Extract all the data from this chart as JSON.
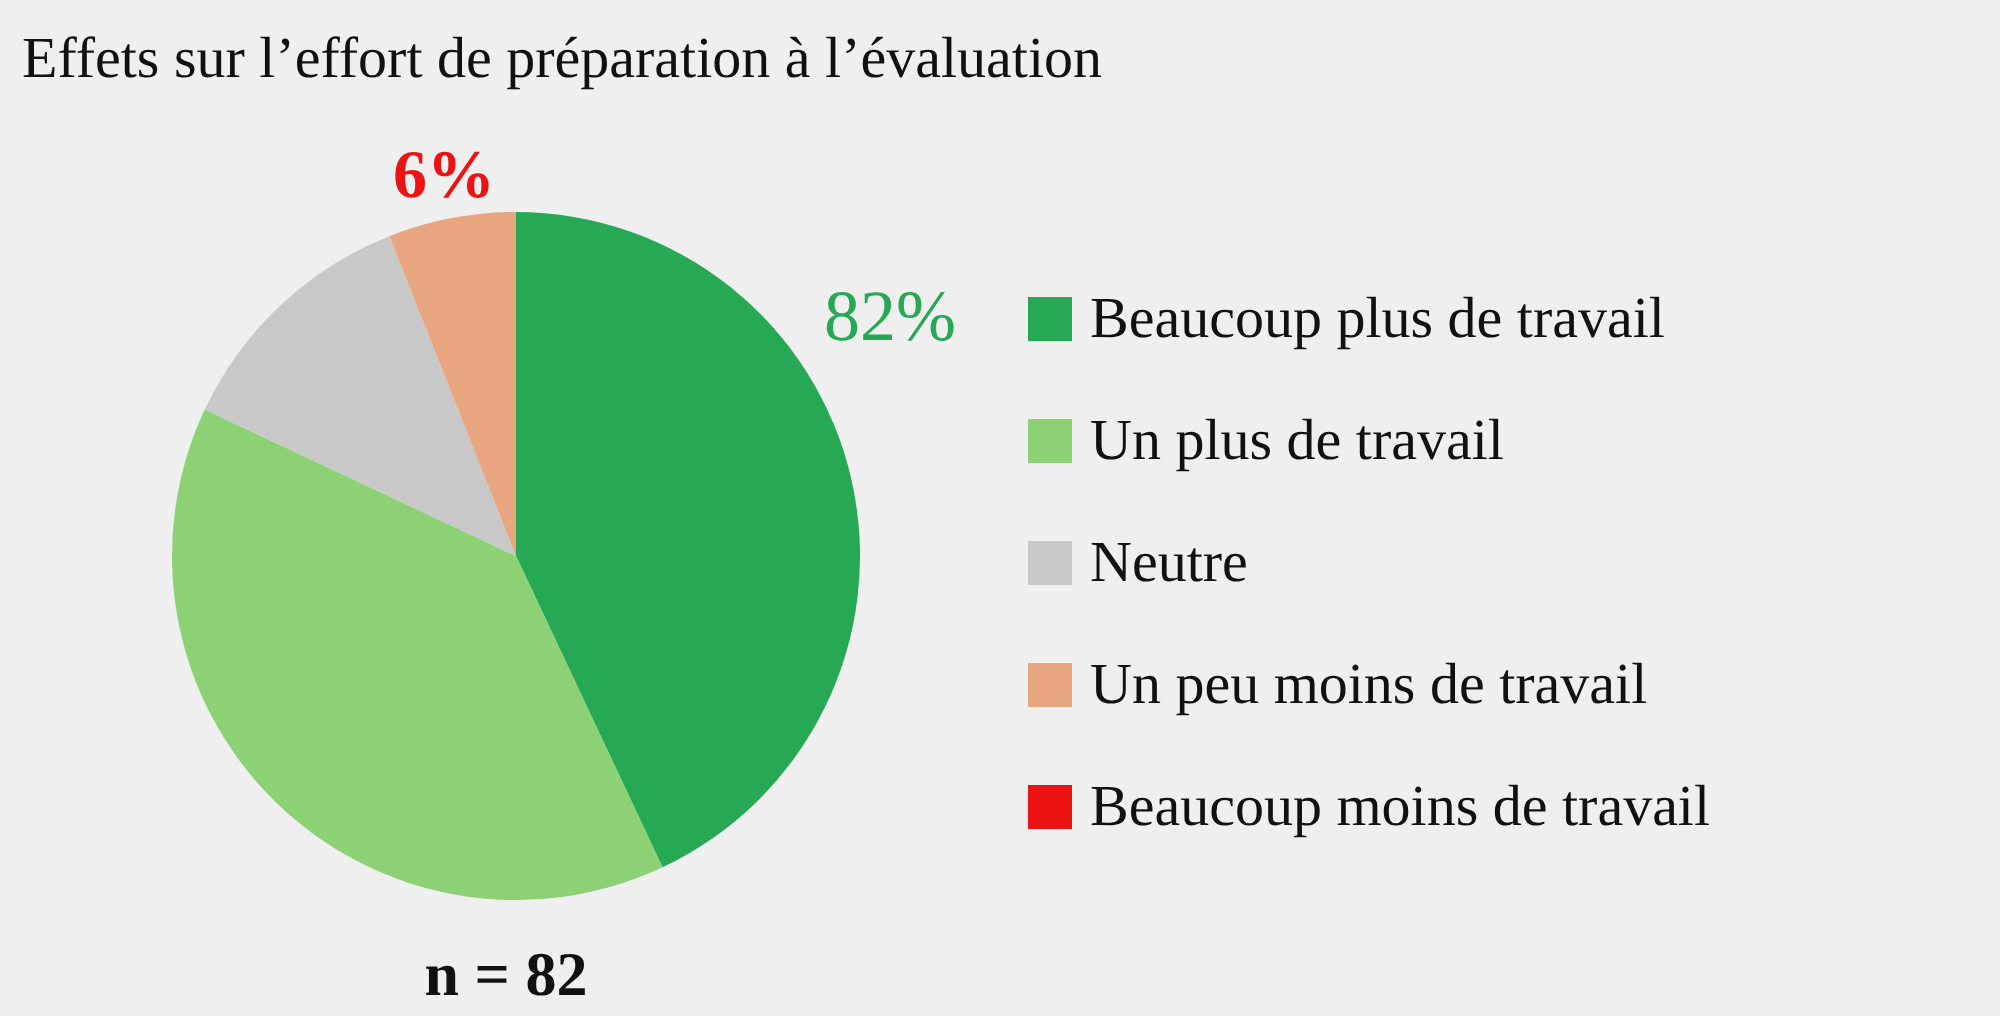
{
  "chart_data": {
    "type": "pie",
    "title": "Effets sur l’effort de préparation à l’évaluation",
    "categories": [
      "Beaucoup plus de travail",
      "Un plus de travail",
      "Neutre",
      "Un peu moins de travail",
      "Beaucoup moins de travail"
    ],
    "values": [
      43,
      39,
      12,
      6,
      0
    ],
    "colors": [
      "#27a854",
      "#8cd174",
      "#c8c8c8",
      "#e7a580",
      "#ec1313"
    ],
    "legend": "right",
    "annotations": [
      "82%",
      "6%",
      "n = 82"
    ]
  }
}
